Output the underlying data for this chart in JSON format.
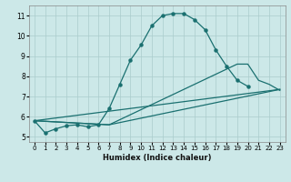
{
  "xlabel": "Humidex (Indice chaleur)",
  "bg_color": "#cce8e8",
  "grid_color": "#aacccc",
  "line_color": "#1a7070",
  "xlim": [
    -0.5,
    23.5
  ],
  "ylim": [
    4.75,
    11.5
  ],
  "xticks": [
    0,
    1,
    2,
    3,
    4,
    5,
    6,
    7,
    8,
    9,
    10,
    11,
    12,
    13,
    14,
    15,
    16,
    17,
    18,
    19,
    20,
    21,
    22,
    23
  ],
  "yticks": [
    5,
    6,
    7,
    8,
    9,
    10,
    11
  ],
  "curve_x": [
    0,
    1,
    2,
    3,
    4,
    5,
    6,
    7,
    8,
    9,
    10,
    11,
    12,
    13,
    14,
    15,
    16,
    17,
    18,
    19,
    20
  ],
  "curve_y": [
    5.8,
    5.2,
    5.4,
    5.55,
    5.6,
    5.5,
    5.6,
    6.4,
    7.6,
    8.8,
    9.55,
    10.5,
    11.0,
    11.1,
    11.1,
    10.8,
    10.3,
    9.3,
    8.5,
    7.8,
    7.5
  ],
  "line1_x": [
    0,
    7,
    19,
    20,
    21,
    22,
    23
  ],
  "line1_y": [
    5.8,
    5.6,
    8.6,
    8.6,
    7.8,
    7.6,
    7.3
  ],
  "line2_x": [
    0,
    23
  ],
  "line2_y": [
    5.8,
    7.35
  ],
  "line3_x": [
    0,
    7,
    23
  ],
  "line3_y": [
    5.8,
    5.6,
    7.35
  ]
}
